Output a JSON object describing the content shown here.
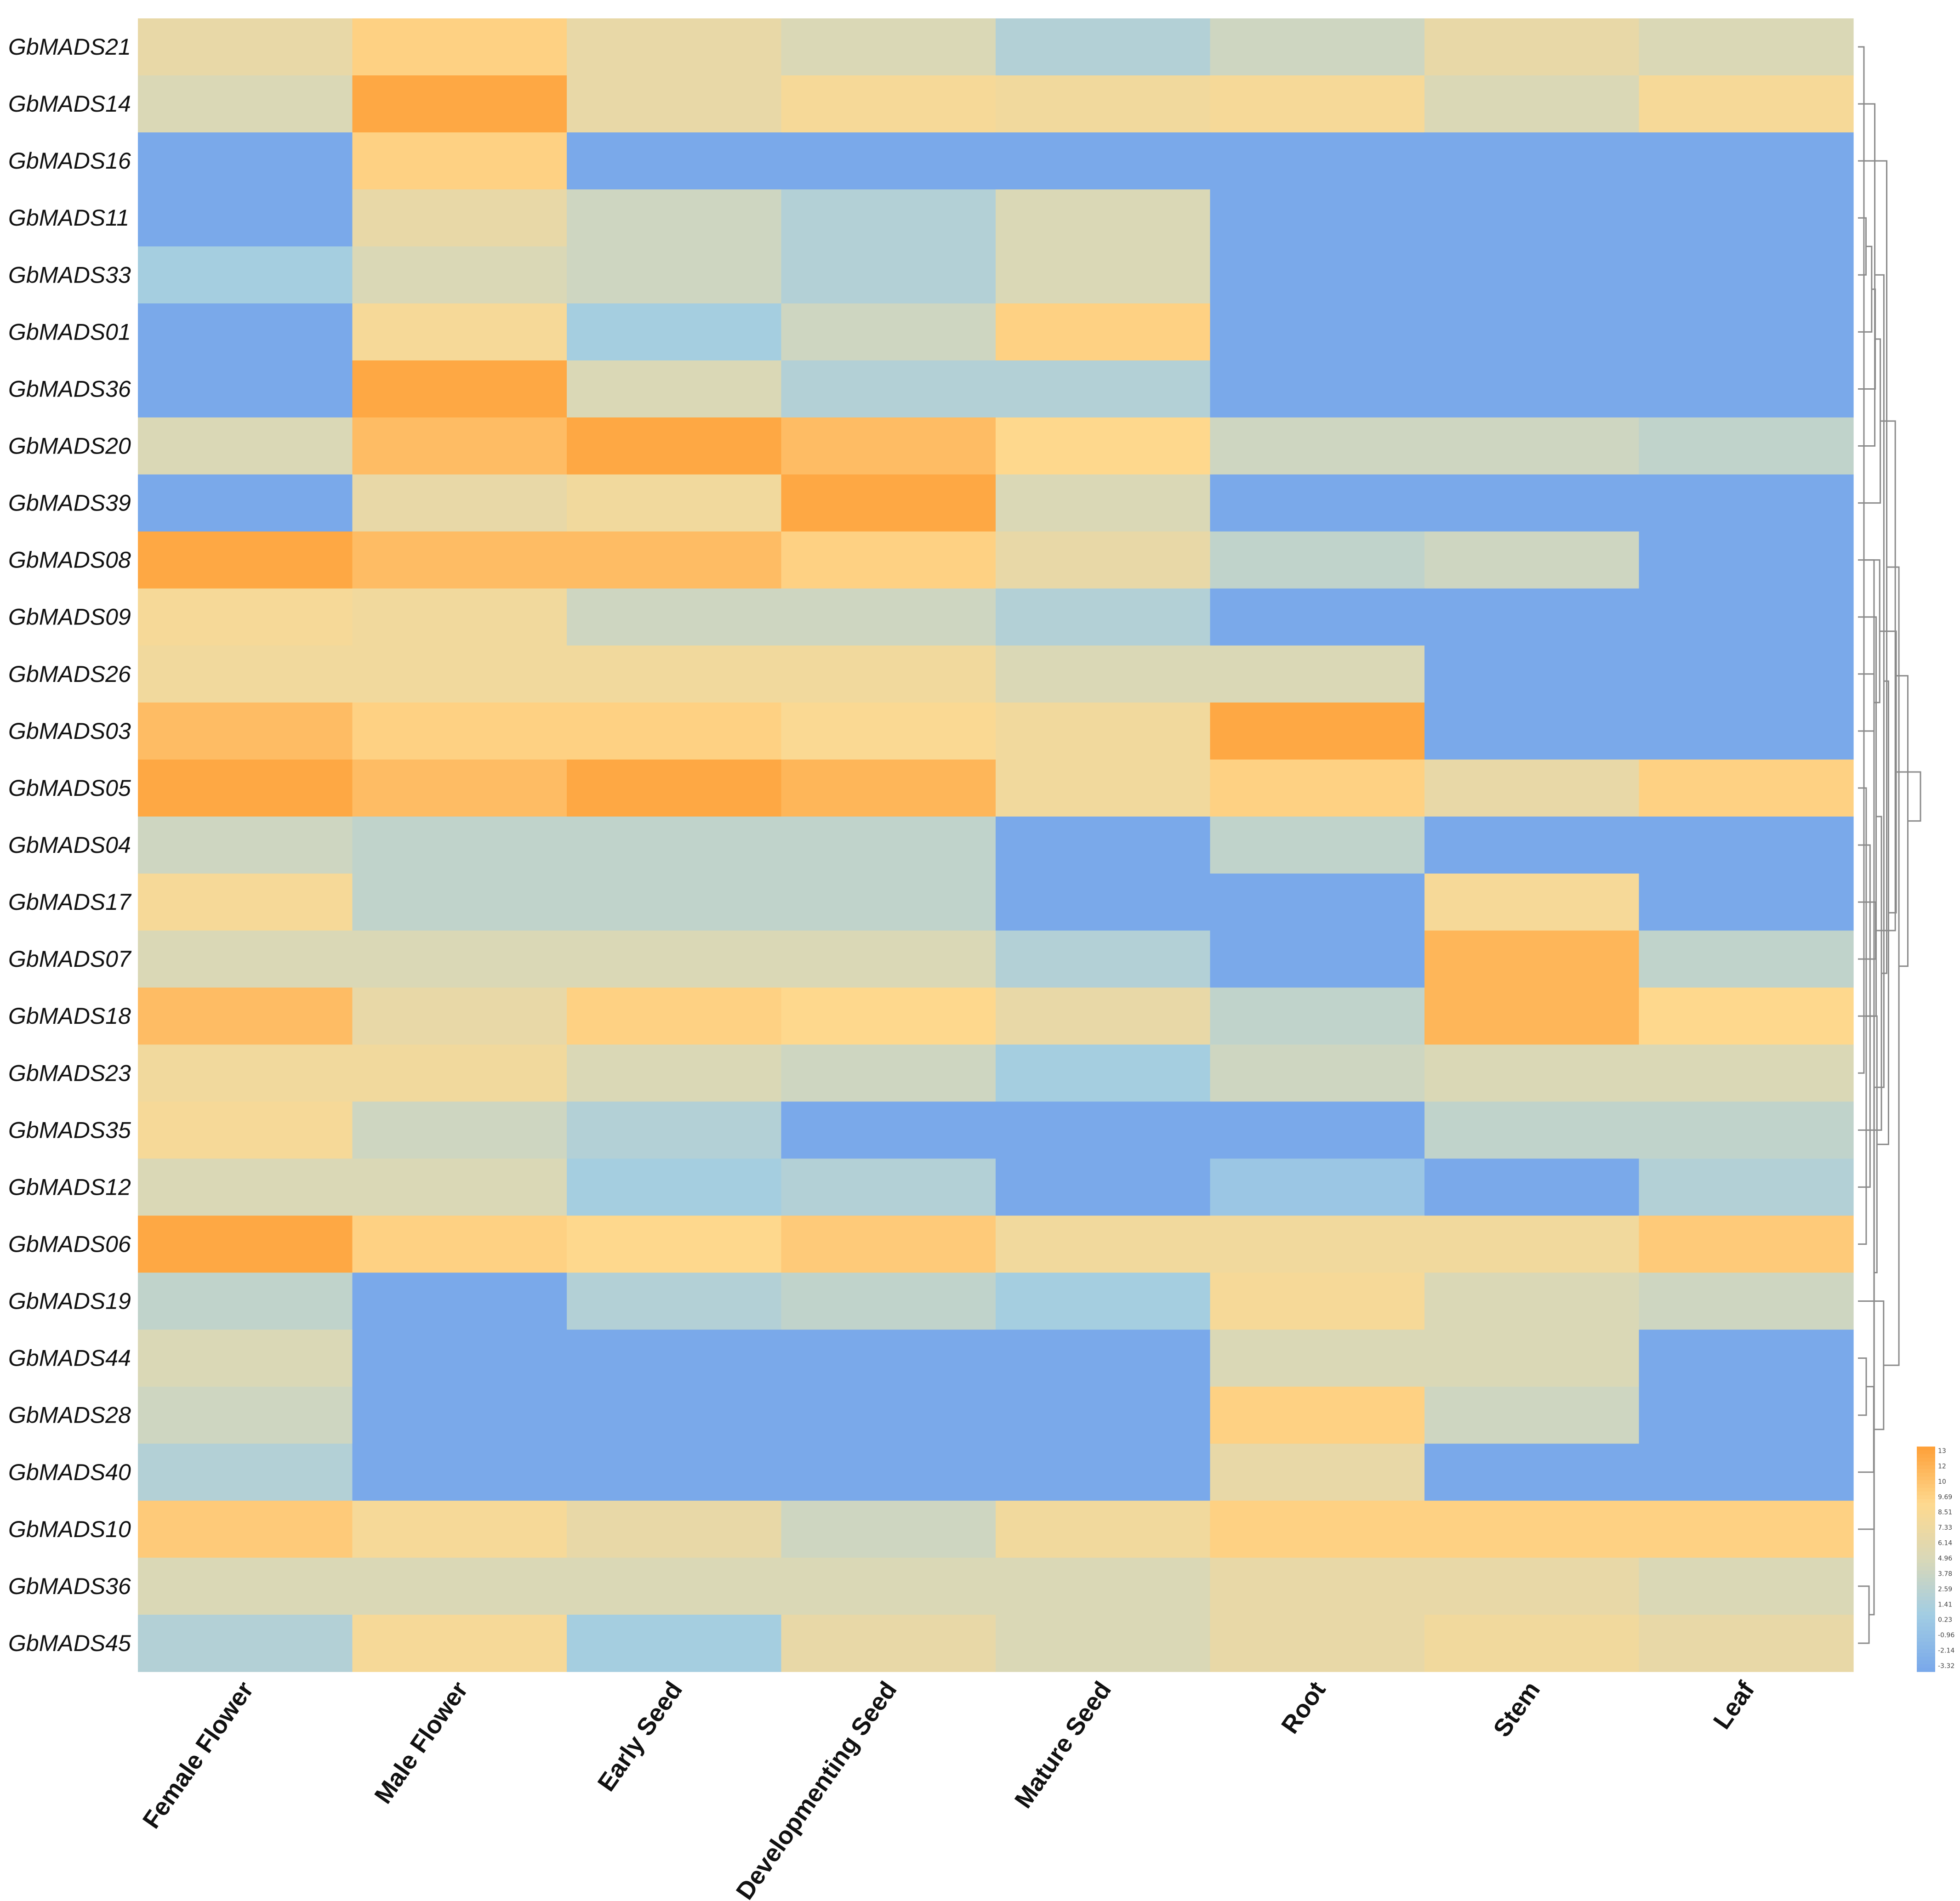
{
  "chart_data": {
    "type": "heatmap",
    "title": "",
    "rows": [
      "GbMADS21",
      "GbMADS14",
      "GbMADS16",
      "GbMADS11",
      "GbMADS33",
      "GbMADS01",
      "GbMADS36",
      "GbMADS20",
      "GbMADS39",
      "GbMADS08",
      "GbMADS09",
      "GbMADS26",
      "GbMADS03",
      "GbMADS05",
      "GbMADS04",
      "GbMADS17",
      "GbMADS07",
      "GbMADS18",
      "GbMADS23",
      "GbMADS35",
      "GbMADS12",
      "GbMADS06",
      "GbMADS19",
      "GbMADS44",
      "GbMADS28",
      "GbMADS40",
      "GbMADS10",
      "GbMADS36",
      "GbMADS45"
    ],
    "columns": [
      "Female Flower",
      "Male Flower",
      "Early Seed",
      "Developmenting Seed",
      "Mature Seed",
      "Root",
      "Stem",
      "Leaf"
    ],
    "values": [
      [
        6.5,
        9.5,
        6.5,
        5.0,
        2.0,
        4.0,
        6.5,
        5.0
      ],
      [
        5.0,
        12.5,
        6.5,
        8.0,
        7.5,
        8.0,
        5.0,
        8.0
      ],
      [
        -3.32,
        9.5,
        -3.32,
        -3.32,
        -3.32,
        -3.32,
        -3.32,
        -3.32
      ],
      [
        -3.32,
        6.5,
        4.0,
        2.0,
        5.0,
        -3.32,
        -3.32,
        -3.32
      ],
      [
        1.0,
        5.0,
        4.0,
        2.0,
        5.0,
        -3.32,
        -3.32,
        -3.32
      ],
      [
        -3.32,
        8.0,
        1.0,
        4.0,
        9.5,
        -3.32,
        -3.32,
        -3.32
      ],
      [
        -3.32,
        12.5,
        5.0,
        2.0,
        2.0,
        -3.32,
        -3.32,
        -3.32
      ],
      [
        5.0,
        11.0,
        12.5,
        11.0,
        9.0,
        4.0,
        4.0,
        3.0
      ],
      [
        -3.32,
        6.5,
        7.5,
        12.5,
        5.0,
        -3.32,
        -3.32,
        -3.32
      ],
      [
        12.5,
        11.0,
        11.0,
        9.5,
        6.5,
        3.0,
        4.0,
        -3.32
      ],
      [
        8.0,
        7.5,
        4.0,
        4.0,
        2.0,
        -3.32,
        -3.32,
        -3.32
      ],
      [
        7.5,
        7.5,
        7.5,
        7.5,
        5.0,
        5.0,
        -3.32,
        -3.32
      ],
      [
        11.0,
        9.5,
        9.5,
        8.5,
        7.5,
        12.5,
        -3.32,
        -3.32
      ],
      [
        12.5,
        11.0,
        12.5,
        11.5,
        7.5,
        9.5,
        6.5,
        9.5
      ],
      [
        4.0,
        3.0,
        3.0,
        3.0,
        -3.32,
        3.0,
        -3.32,
        -3.32
      ],
      [
        8.0,
        3.0,
        3.0,
        3.0,
        -3.32,
        -3.32,
        8.0,
        -3.32
      ],
      [
        5.0,
        5.0,
        5.0,
        5.0,
        2.0,
        -3.32,
        11.5,
        3.0
      ],
      [
        11.0,
        6.5,
        9.5,
        9.0,
        6.5,
        3.0,
        11.5,
        9.0
      ],
      [
        7.5,
        7.5,
        5.0,
        4.0,
        1.0,
        4.0,
        5.0,
        5.0
      ],
      [
        8.0,
        4.0,
        2.0,
        -3.32,
        -3.32,
        -3.32,
        3.0,
        3.0
      ],
      [
        5.0,
        5.0,
        1.0,
        2.0,
        -3.32,
        0.0,
        -3.32,
        2.0
      ],
      [
        12.5,
        9.5,
        9.0,
        10.0,
        7.5,
        7.5,
        7.5,
        10.0
      ],
      [
        3.0,
        -3.32,
        2.0,
        3.0,
        1.0,
        8.0,
        5.0,
        4.0
      ],
      [
        5.0,
        -3.32,
        -3.32,
        -3.32,
        -3.32,
        5.0,
        5.0,
        -3.32
      ],
      [
        4.0,
        -3.32,
        -3.32,
        -3.32,
        -3.32,
        9.5,
        4.0,
        -3.32
      ],
      [
        2.0,
        -3.32,
        -3.32,
        -3.32,
        -3.32,
        6.5,
        -3.32,
        -3.32
      ],
      [
        10.0,
        8.0,
        6.5,
        4.0,
        7.5,
        9.5,
        9.5,
        9.5
      ],
      [
        5.0,
        5.0,
        5.0,
        5.0,
        5.0,
        6.5,
        6.5,
        5.0
      ],
      [
        2.0,
        8.0,
        1.0,
        6.5,
        5.0,
        6.5,
        7.5,
        6.5
      ]
    ],
    "color_scale": {
      "min": -3.32,
      "max": 13,
      "colors": [
        "#7aa9ea",
        "#a2cde3",
        "#d9d8b8",
        "#fed98f",
        "#fea13a"
      ],
      "ticks": [
        "13",
        "12",
        "10",
        "9.69",
        "8.51",
        "7.33",
        "6.14",
        "4.96",
        "3.78",
        "2.59",
        "1.41",
        "0.23",
        "-0.96",
        "-2.14",
        "-3.32"
      ]
    },
    "row_dendrogram": true,
    "legend_position": "bottom-right"
  }
}
